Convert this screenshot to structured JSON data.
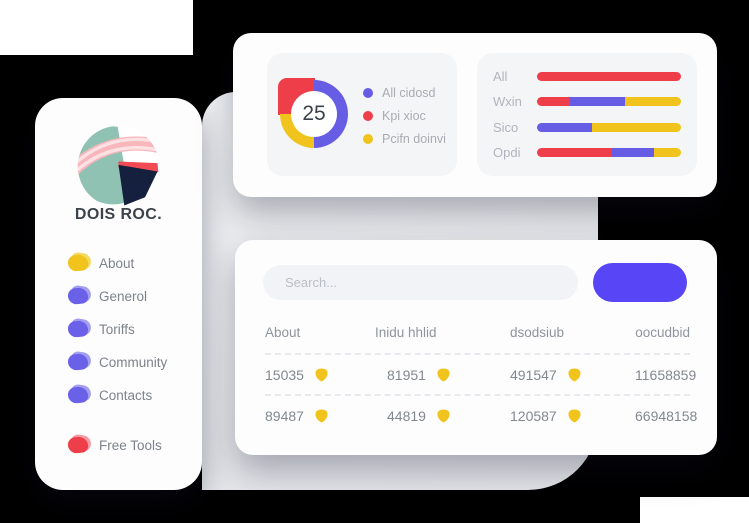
{
  "colors": {
    "purple": "#665DE4",
    "red": "#EE3E4A",
    "yellow": "#F0C41D",
    "button_blue": "#5846F6",
    "logo_teal": "#8FC2B3",
    "logo_navy": "#15203F",
    "logo_pink": "#F8B6BD",
    "logo_pink_light": "#FDE2E4",
    "logo_red": "#F04B52"
  },
  "sidebar": {
    "brand": "DOIS ROC.",
    "menu": [
      {
        "label": "About",
        "color": "#F0C41D",
        "light": "#F5D95C"
      },
      {
        "label": "Generol",
        "color": "#6B61E8",
        "light": "#A49EF1"
      },
      {
        "label": "Toriffs",
        "color": "#6B61E8",
        "light": "#A49EF1"
      },
      {
        "label": "Community",
        "color": "#6B61E8",
        "light": "#A49EF1"
      },
      {
        "label": "Contacts",
        "color": "#6B61E8",
        "light": "#A49EF1"
      }
    ],
    "tools": [
      {
        "label": "Free Tools",
        "color": "#EE3E4A",
        "light": "#F59BA4"
      }
    ]
  },
  "table_card": {
    "search_placeholder": "Search...",
    "columns": [
      "About",
      "Inidu hhlid",
      "dsodsiub",
      "oocudbid"
    ],
    "rows": [
      [
        "15035",
        "81951",
        "491547",
        "11658859"
      ],
      [
        "89487",
        "44819",
        "120587",
        "66948158"
      ]
    ]
  },
  "chart_data": [
    {
      "type": "pie",
      "subtype": "donut",
      "center_label": "25",
      "labels": [
        "All cidosd",
        "Kpi xioc",
        "Pcifn doinvi"
      ],
      "values": [
        50,
        25,
        25
      ],
      "colors": [
        "#665DE4",
        "#EE3E4A",
        "#F0C41D"
      ],
      "draw_order": [
        0,
        2,
        1
      ],
      "legend_position": "right"
    },
    {
      "type": "bar",
      "orientation": "horizontal",
      "stacked": true,
      "categories": [
        "All",
        "Wxin",
        "Sico",
        "Opdi"
      ],
      "series": [
        {
          "name": "Kpi xioc",
          "color": "#EE3E4A",
          "values": [
            100,
            23,
            0,
            52
          ]
        },
        {
          "name": "All cidosd",
          "color": "#665DE4",
          "values": [
            0,
            38,
            38,
            29
          ]
        },
        {
          "name": "Pcifn doinvi",
          "color": "#F0C41D",
          "values": [
            0,
            39,
            62,
            19
          ]
        }
      ],
      "xlim": [
        0,
        100
      ],
      "unit": "percent"
    }
  ]
}
